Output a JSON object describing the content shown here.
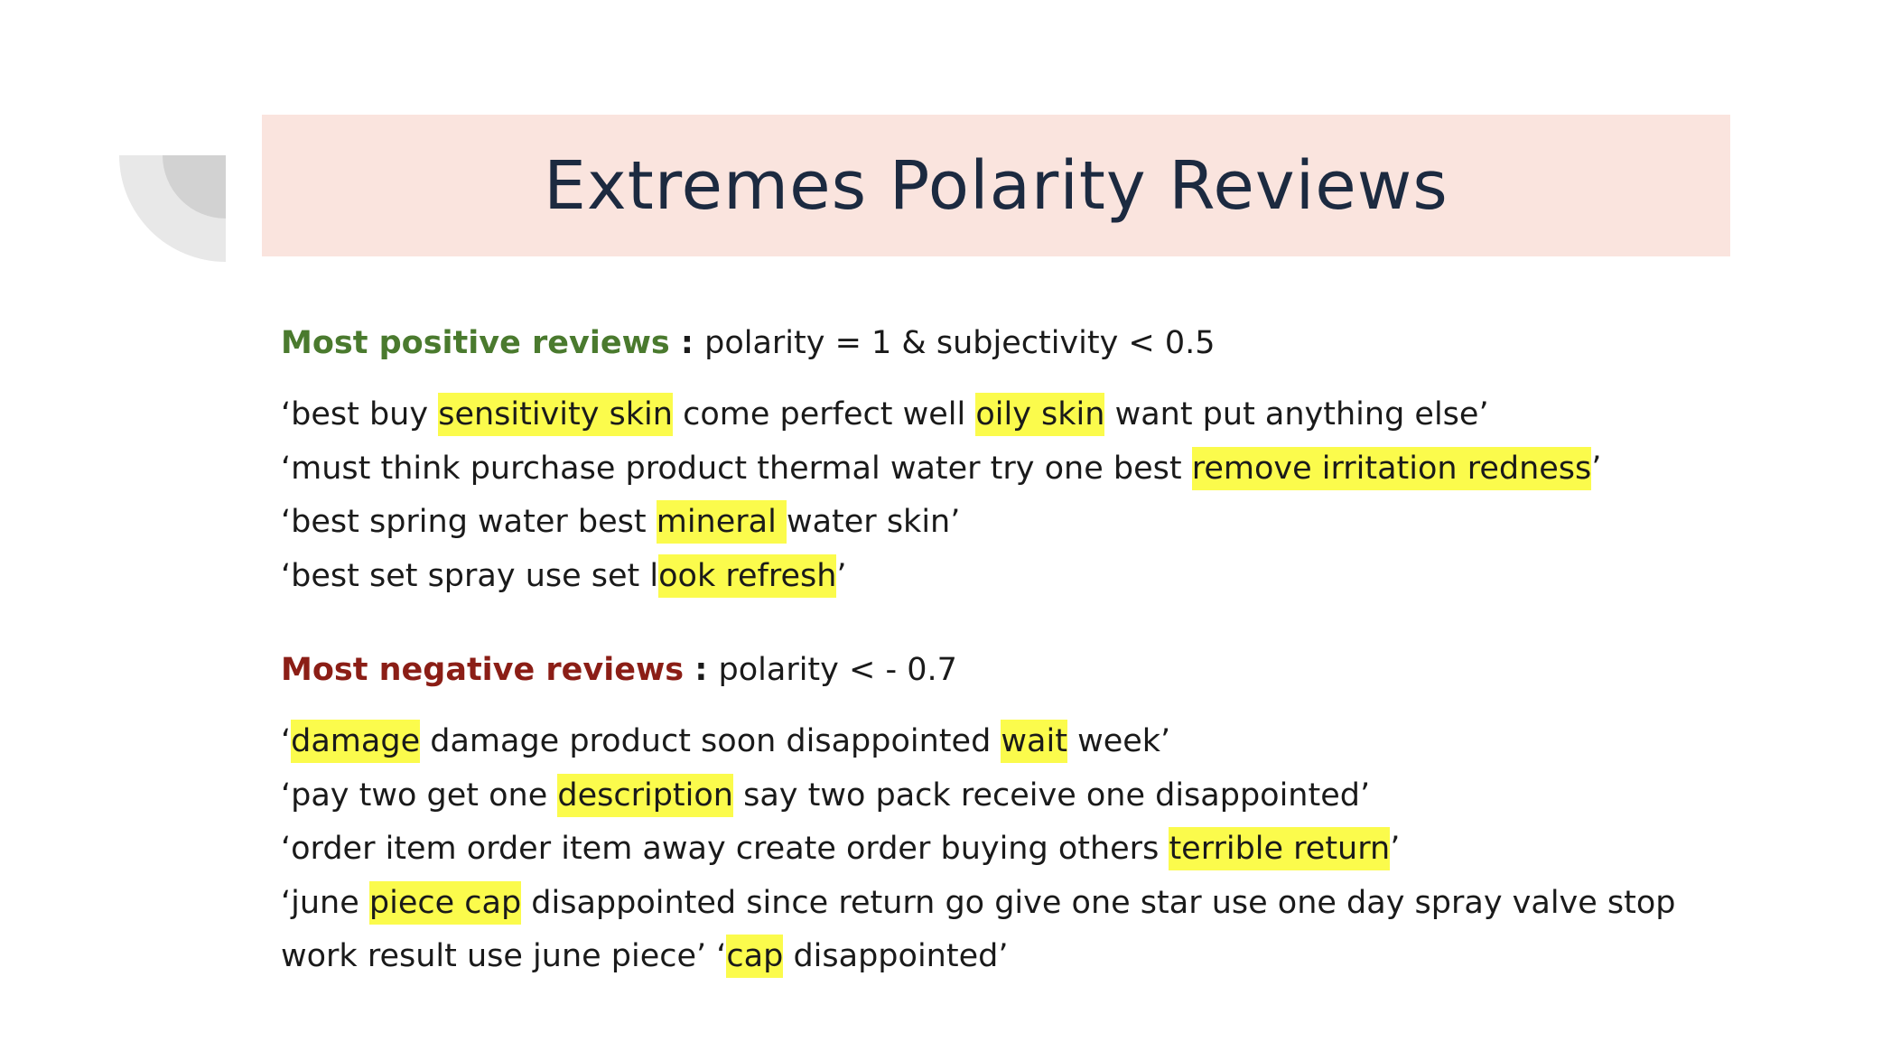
{
  "slide": {
    "title": "Extremes Polarity Reviews",
    "highlight_color": "#fbfb4c",
    "positive": {
      "label": "Most positive reviews",
      "criteria": "polarity = 1 & subjectivity < 0.5",
      "label_color": "#4a7a2e",
      "lines": [
        [
          {
            "t": "‘best buy ",
            "h": false
          },
          {
            "t": "sensitivity skin",
            "h": true
          },
          {
            "t": " come perfect well ",
            "h": false
          },
          {
            "t": "oily skin",
            "h": true
          },
          {
            "t": " want put anything else’",
            "h": false
          }
        ],
        [
          {
            "t": "‘must think purchase product thermal water try one best ",
            "h": false
          },
          {
            "t": "remove irritation redness",
            "h": true
          },
          {
            "t": "’",
            "h": false
          }
        ],
        [
          {
            "t": "‘best spring water best ",
            "h": false
          },
          {
            "t": "mineral ",
            "h": true
          },
          {
            "t": "water skin’",
            "h": false
          }
        ],
        [
          {
            "t": "‘best set spray use set l",
            "h": false
          },
          {
            "t": "ook refresh",
            "h": true
          },
          {
            "t": "’",
            "h": false
          }
        ]
      ]
    },
    "negative": {
      "label": "Most negative reviews",
      "criteria": "polarity < - 0.7",
      "label_color": "#8b1e16",
      "lines": [
        [
          {
            "t": "‘",
            "h": false
          },
          {
            "t": "damage",
            "h": true
          },
          {
            "t": " damage product soon disappointed ",
            "h": false
          },
          {
            "t": "wait",
            "h": true
          },
          {
            "t": " week’",
            "h": false
          }
        ],
        [
          {
            "t": "‘pay two get one ",
            "h": false
          },
          {
            "t": "description",
            "h": true
          },
          {
            "t": " say two pack receive one disappointed’",
            "h": false
          }
        ],
        [
          {
            "t": "‘order item order item away create order buying others ",
            "h": false
          },
          {
            "t": "terrible return",
            "h": true
          },
          {
            "t": "’",
            "h": false
          }
        ],
        [
          {
            "t": "‘june ",
            "h": false
          },
          {
            "t": "piece cap",
            "h": true
          },
          {
            "t": " disappointed since return go give one star use one day spray valve stop",
            "h": false
          }
        ],
        [
          {
            "t": "work result use june piece’ ‘",
            "h": false
          },
          {
            "t": "cap",
            "h": true
          },
          {
            "t": " disappointed’",
            "h": false
          }
        ]
      ]
    }
  }
}
